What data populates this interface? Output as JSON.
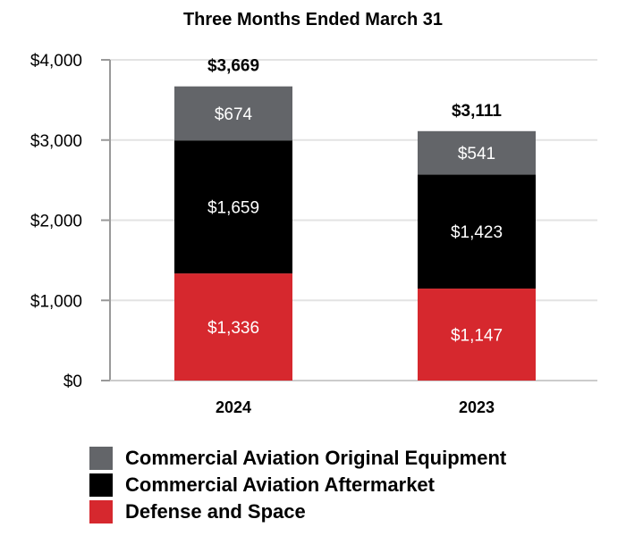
{
  "chart_data": {
    "type": "bar",
    "stacked": true,
    "title": "Three Months Ended March 31",
    "categories": [
      "2024",
      "2023"
    ],
    "ylim": [
      0,
      4000
    ],
    "yticks": [
      0,
      1000,
      2000,
      3000,
      4000
    ],
    "ytick_labels": [
      "$0",
      "$1,000",
      "$2,000",
      "$3,000",
      "$4,000"
    ],
    "grid": true,
    "legend_position": "bottom",
    "series": [
      {
        "name": "Defense and Space",
        "color": "#d6282e",
        "values": [
          1336,
          1147
        ],
        "labels": [
          "$1,336",
          "$1,147"
        ]
      },
      {
        "name": "Commercial Aviation Aftermarket",
        "color": "#000000",
        "values": [
          1659,
          1423
        ],
        "labels": [
          "$1,659",
          "$1,423"
        ]
      },
      {
        "name": "Commercial Aviation Original Equipment",
        "color": "#636569",
        "values": [
          674,
          541
        ],
        "labels": [
          "$674",
          "$541"
        ]
      }
    ],
    "totals": [
      "$3,669",
      "$3,111"
    ],
    "legend_order": [
      2,
      1,
      0
    ]
  }
}
